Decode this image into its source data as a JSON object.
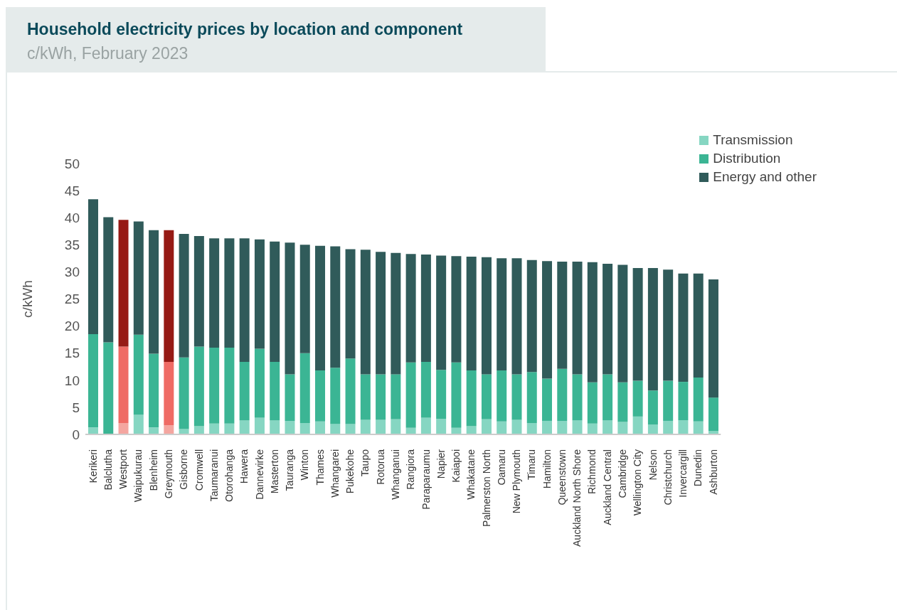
{
  "chart_data": {
    "type": "bar",
    "title": "Household electricity prices by location and component",
    "subtitle": "c/kWh, February 2023",
    "ylabel": "c/kWh",
    "categories": [
      "Kerikeri",
      "Balclutha",
      "Westport",
      "Waipukurau",
      "Blenheim",
      "Greymouth",
      "Gisborne",
      "Cromwell",
      "Taumaranui",
      "Otorohanga",
      "Hawera",
      "Dannevirke",
      "Masterton",
      "Tauranga",
      "Winton",
      "Thames",
      "Whangarei",
      "Pukekohe",
      "Taupo",
      "Rotorua",
      "Whanganui",
      "Rangiora",
      "Paraparaumu",
      "Napier",
      "Kaiapoi",
      "Whakatane",
      "Palmerston North",
      "Oamaru",
      "New Plymouth",
      "Timaru",
      "Hamilton",
      "Queenstown",
      "Auckland North Shore",
      "Richmond",
      "Auckland Central",
      "Cambridge",
      "Wellington City",
      "Nelson",
      "Christchurch",
      "Invercargill",
      "Dunedin",
      "Ashburton"
    ],
    "stacked": true,
    "ylim": [
      0,
      50
    ],
    "yticks": [
      0,
      5,
      10,
      15,
      20,
      25,
      30,
      35,
      40,
      45,
      50
    ],
    "grid": false,
    "legend": "top right",
    "series": [
      {
        "name": "Transmission",
        "color": "#86d6c2",
        "colors": [
          "#86d6c2",
          "#86d6c2",
          "#f4a6a0",
          "#86d6c2",
          "#86d6c2",
          "#f4a6a0",
          "#86d6c2",
          "#86d6c2",
          "#86d6c2",
          "#86d6c2",
          "#86d6c2",
          "#86d6c2",
          "#86d6c2",
          "#86d6c2",
          "#86d6c2",
          "#86d6c2",
          "#86d6c2",
          "#86d6c2",
          "#86d6c2",
          "#86d6c2",
          "#86d6c2",
          "#86d6c2",
          "#86d6c2",
          "#86d6c2",
          "#86d6c2",
          "#86d6c2",
          "#86d6c2",
          "#86d6c2",
          "#86d6c2",
          "#86d6c2",
          "#86d6c2",
          "#86d6c2",
          "#86d6c2",
          "#86d6c2",
          "#86d6c2",
          "#86d6c2",
          "#86d6c2",
          "#86d6c2",
          "#86d6c2",
          "#86d6c2",
          "#86d6c2",
          "#86d6c2"
        ],
        "values": [
          1.3,
          0,
          2.1,
          3.6,
          1.3,
          1.7,
          1.0,
          1.5,
          2.0,
          2.0,
          2.6,
          3.1,
          2.6,
          2.5,
          2.1,
          2.4,
          1.9,
          1.9,
          2.7,
          2.7,
          2.8,
          1.2,
          3.1,
          2.9,
          1.2,
          1.5,
          2.8,
          2.4,
          2.7,
          2.1,
          2.5,
          2.5,
          2.6,
          2.0,
          2.6,
          2.3,
          3.3,
          1.8,
          2.5,
          2.6,
          2.4,
          0.6
        ]
      },
      {
        "name": "Distribution",
        "color": "#3bb594",
        "colors": [
          "#3bb594",
          "#3bb594",
          "#ef6b65",
          "#3bb594",
          "#3bb594",
          "#ef6b65",
          "#3bb594",
          "#3bb594",
          "#3bb594",
          "#3bb594",
          "#3bb594",
          "#3bb594",
          "#3bb594",
          "#3bb594",
          "#3bb594",
          "#3bb594",
          "#3bb594",
          "#3bb594",
          "#3bb594",
          "#3bb594",
          "#3bb594",
          "#3bb594",
          "#3bb594",
          "#3bb594",
          "#3bb594",
          "#3bb594",
          "#3bb594",
          "#3bb594",
          "#3bb594",
          "#3bb594",
          "#3bb594",
          "#3bb594",
          "#3bb594",
          "#3bb594",
          "#3bb594",
          "#3bb594",
          "#3bb594",
          "#3bb594",
          "#3bb594",
          "#3bb594",
          "#3bb594",
          "#3bb594"
        ],
        "values": [
          17.2,
          17.0,
          14.1,
          14.8,
          13.6,
          11.7,
          13.2,
          14.7,
          14.0,
          14.0,
          10.8,
          12.7,
          10.8,
          8.6,
          12.9,
          9.4,
          10.4,
          12.1,
          8.4,
          8.4,
          8.3,
          12.1,
          10.3,
          9.0,
          12.1,
          10.3,
          8.3,
          9.4,
          8.4,
          9.4,
          7.8,
          9.6,
          8.5,
          7.6,
          8.5,
          7.3,
          6.6,
          6.3,
          7.4,
          7.1,
          8.1,
          6.2
        ]
      },
      {
        "name": "Energy and other",
        "color": "#305b5a",
        "colors": [
          "#305b5a",
          "#305b5a",
          "#961a15",
          "#305b5a",
          "#305b5a",
          "#961a15",
          "#305b5a",
          "#305b5a",
          "#305b5a",
          "#305b5a",
          "#305b5a",
          "#305b5a",
          "#305b5a",
          "#305b5a",
          "#305b5a",
          "#305b5a",
          "#305b5a",
          "#305b5a",
          "#305b5a",
          "#305b5a",
          "#305b5a",
          "#305b5a",
          "#305b5a",
          "#305b5a",
          "#305b5a",
          "#305b5a",
          "#305b5a",
          "#305b5a",
          "#305b5a",
          "#305b5a",
          "#305b5a",
          "#305b5a",
          "#305b5a",
          "#305b5a",
          "#305b5a",
          "#305b5a",
          "#305b5a",
          "#305b5a",
          "#305b5a",
          "#305b5a",
          "#305b5a",
          "#305b5a"
        ],
        "values": [
          24.9,
          23.1,
          23.4,
          20.9,
          22.8,
          24.3,
          22.8,
          20.4,
          20.2,
          20.2,
          22.8,
          20.2,
          22.2,
          24.3,
          20.0,
          23.0,
          22.4,
          20.2,
          23.0,
          22.6,
          22.4,
          20.0,
          19.8,
          21.1,
          19.6,
          21.0,
          21.6,
          20.7,
          21.4,
          20.7,
          21.7,
          19.8,
          20.8,
          22.2,
          20.4,
          21.7,
          20.8,
          22.6,
          20.5,
          20.0,
          19.2,
          21.8
        ]
      }
    ]
  }
}
